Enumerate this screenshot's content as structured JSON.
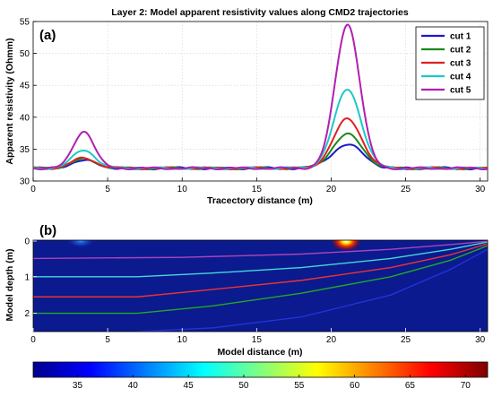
{
  "chart_data": [
    {
      "type": "line",
      "panel_label": "(a)",
      "title": "Layer 2: Model apparent resistivity values along CMD2 trajectories",
      "xlabel": "Tracectory distance (m)",
      "ylabel": "Apparent resistivity (Ohmm)",
      "xlim": [
        0,
        30.5
      ],
      "ylim": [
        30,
        55
      ],
      "xticks": [
        0,
        5,
        10,
        15,
        20,
        25,
        30
      ],
      "yticks": [
        30,
        35,
        40,
        45,
        50,
        55
      ],
      "grid": true,
      "legend": "top-right",
      "baseline": 32.0,
      "series": [
        {
          "name": "cut 1",
          "color": "#1a1acc",
          "peaks": [
            {
              "x": 3.4,
              "y": 33.2,
              "w": 0.85
            },
            {
              "x": 21.1,
              "y": 35.7,
              "w": 1.05
            }
          ]
        },
        {
          "name": "cut 2",
          "color": "#1a8a1a",
          "peaks": [
            {
              "x": 3.4,
              "y": 33.4,
              "w": 0.85
            },
            {
              "x": 21.1,
              "y": 37.3,
              "w": 1.0
            }
          ]
        },
        {
          "name": "cut 3",
          "color": "#e02020",
          "peaks": [
            {
              "x": 3.4,
              "y": 33.6,
              "w": 0.8
            },
            {
              "x": 21.1,
              "y": 39.7,
              "w": 0.95
            }
          ]
        },
        {
          "name": "cut 4",
          "color": "#1ec8c8",
          "peaks": [
            {
              "x": 3.4,
              "y": 34.9,
              "w": 0.75
            },
            {
              "x": 21.1,
              "y": 44.4,
              "w": 0.9
            }
          ]
        },
        {
          "name": "cut 5",
          "color": "#b020b0",
          "peaks": [
            {
              "x": 3.4,
              "y": 37.8,
              "w": 0.7
            },
            {
              "x": 21.1,
              "y": 54.6,
              "w": 0.82
            }
          ]
        }
      ]
    },
    {
      "type": "heatmap",
      "panel_label": "(b)",
      "xlabel": "Model distance (m)",
      "ylabel": "Model depth (m)",
      "xlim": [
        0,
        30.5
      ],
      "ylim": [
        2.5,
        0
      ],
      "xticks": [
        0,
        5,
        10,
        15,
        20,
        25,
        30
      ],
      "yticks": [
        0,
        1,
        2
      ],
      "background_color": "#0b1a8e",
      "anomalies": [
        {
          "x": 3.2,
          "depth": 0.0,
          "value": 42
        },
        {
          "x": 21.0,
          "depth": 0.0,
          "value": 72
        }
      ],
      "trajectories": [
        {
          "name": "cut 1",
          "color": "#2233dd",
          "points": [
            [
              7,
              2.5
            ],
            [
              12,
              2.4
            ],
            [
              18,
              2.1
            ],
            [
              24,
              1.5
            ],
            [
              28,
              0.8
            ],
            [
              30.5,
              0.25
            ]
          ]
        },
        {
          "name": "cut 2",
          "color": "#22aa22",
          "points": [
            [
              0,
              2.0
            ],
            [
              7,
              2.0
            ],
            [
              12,
              1.8
            ],
            [
              18,
              1.45
            ],
            [
              24,
              1.0
            ],
            [
              28,
              0.55
            ],
            [
              30.5,
              0.15
            ]
          ]
        },
        {
          "name": "cut 3",
          "color": "#ee3333",
          "points": [
            [
              0,
              1.55
            ],
            [
              7,
              1.55
            ],
            [
              12,
              1.35
            ],
            [
              18,
              1.1
            ],
            [
              24,
              0.75
            ],
            [
              28,
              0.4
            ],
            [
              30.5,
              0.1
            ]
          ]
        },
        {
          "name": "cut 4",
          "color": "#44d8d8",
          "points": [
            [
              0,
              1.0
            ],
            [
              7,
              1.0
            ],
            [
              12,
              0.9
            ],
            [
              18,
              0.75
            ],
            [
              24,
              0.5
            ],
            [
              28,
              0.25
            ],
            [
              30.5,
              0.05
            ]
          ]
        },
        {
          "name": "cut 5",
          "color": "#aa44bb",
          "points": [
            [
              0,
              0.5
            ],
            [
              10,
              0.47
            ],
            [
              18,
              0.38
            ],
            [
              24,
              0.25
            ],
            [
              28,
              0.12
            ],
            [
              30.5,
              0.03
            ]
          ]
        }
      ]
    },
    {
      "type": "colorbar",
      "range": [
        31,
        72
      ],
      "ticks": [
        35,
        40,
        45,
        50,
        55,
        60,
        65,
        70
      ],
      "colormap": "jet"
    }
  ]
}
